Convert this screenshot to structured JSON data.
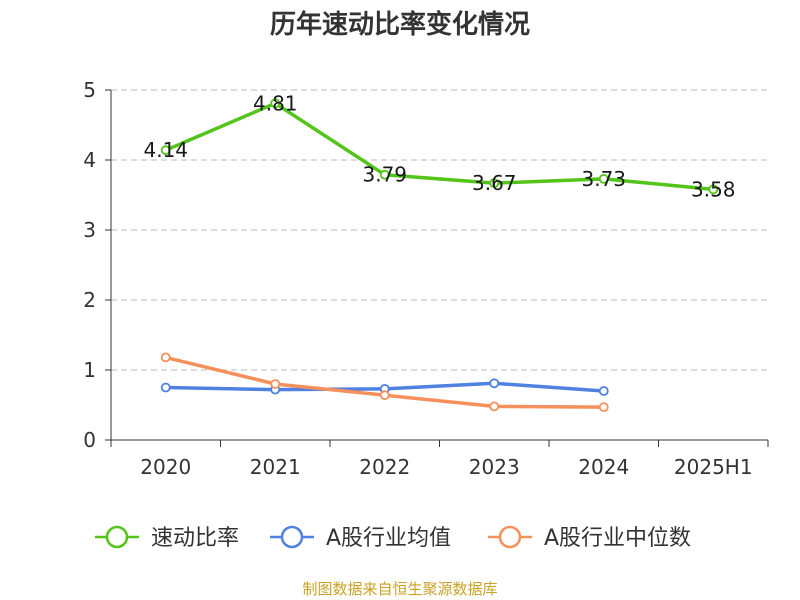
{
  "title": "历年速动比率变化情况",
  "source": "制图数据来自恒生聚源数据库",
  "chart_data": {
    "type": "line",
    "title": "历年速动比率变化情况",
    "categories": [
      "2020",
      "2021",
      "2022",
      "2023",
      "2024",
      "2025H1"
    ],
    "ylim": [
      0,
      5
    ],
    "yticks": [
      0,
      1,
      2,
      3,
      4,
      5
    ],
    "grid": true,
    "legend": "bottom",
    "series": [
      {
        "name": "速动比率",
        "color": "#52c41a",
        "values": [
          4.14,
          4.81,
          3.79,
          3.67,
          3.73,
          3.58
        ],
        "labels": [
          "4.14",
          "4.81",
          "3.79",
          "3.67",
          "3.73",
          "3.58"
        ]
      },
      {
        "name": "A股行业均值",
        "color": "#4f81e0",
        "values": [
          0.75,
          0.72,
          0.73,
          0.81,
          0.7,
          null
        ]
      },
      {
        "name": "A股行业中位数",
        "color": "#f4905c",
        "values": [
          1.18,
          0.8,
          0.64,
          0.48,
          0.47,
          null
        ]
      }
    ]
  }
}
